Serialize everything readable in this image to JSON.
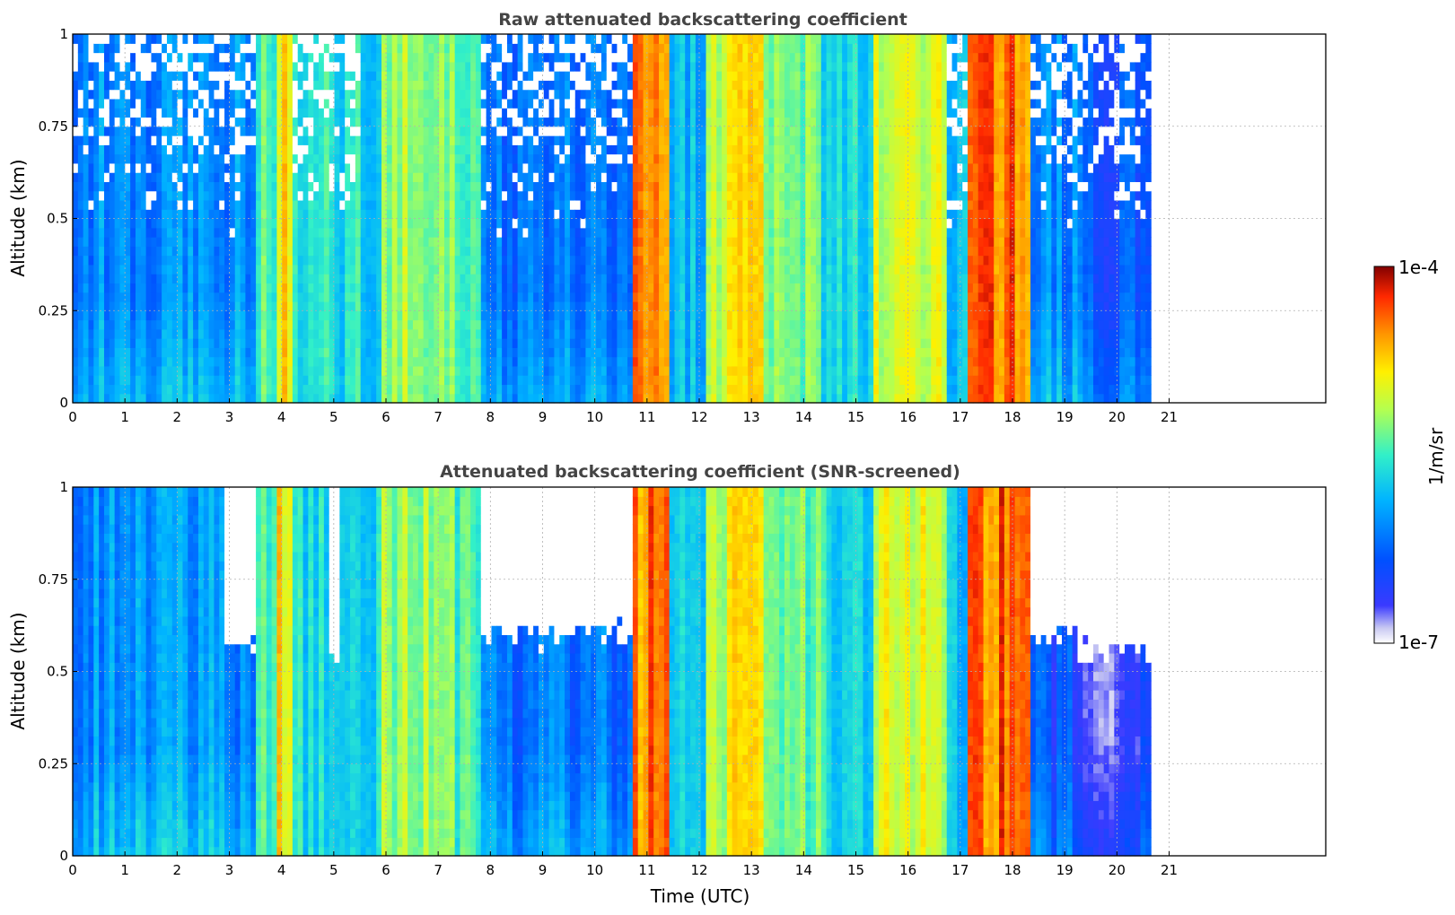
{
  "figure": {
    "colorbar": {
      "label": "1/m/sr",
      "max_label": "1e-4",
      "min_label": "1e-7",
      "scale": "log",
      "range": [
        1e-07,
        0.0001
      ],
      "colormap": "jet (white at lowest values)"
    }
  },
  "chart_data": [
    {
      "type": "heatmap",
      "title": "Raw attenuated backscattering coefficient",
      "xlabel": "",
      "ylabel": "Altitude (km)",
      "xlim": [
        0,
        24
      ],
      "ylim": [
        0,
        1
      ],
      "xticks": [
        0,
        1,
        2,
        3,
        4,
        5,
        6,
        7,
        8,
        9,
        10,
        11,
        12,
        13,
        14,
        15,
        16,
        17,
        18,
        19,
        20,
        21
      ],
      "yticks": [
        0,
        0.25,
        0.5,
        0.75,
        1
      ],
      "ytick_labels": [
        "0",
        "0.25",
        "0.5",
        "0.75",
        "1"
      ],
      "grid": true,
      "data_end_time": 20.65,
      "intensity_level_scale": "0 = 1e-7 (white), 1 = 1e-4 (dark red); colour-coded log intensity",
      "time_segments": [
        {
          "from": 0.0,
          "to": 3.5,
          "level": 0.32,
          "upper_noise": true
        },
        {
          "from": 3.5,
          "to": 3.9,
          "level": 0.55
        },
        {
          "from": 3.9,
          "to": 4.2,
          "level": 0.72
        },
        {
          "from": 4.2,
          "to": 5.5,
          "level": 0.46,
          "upper_noise": true
        },
        {
          "from": 5.5,
          "to": 5.9,
          "level": 0.42
        },
        {
          "from": 5.9,
          "to": 7.3,
          "level": 0.6
        },
        {
          "from": 7.3,
          "to": 7.8,
          "level": 0.5
        },
        {
          "from": 7.8,
          "to": 10.7,
          "level": 0.27,
          "upper_noise": true
        },
        {
          "from": 10.7,
          "to": 11.4,
          "level": 0.84
        },
        {
          "from": 11.4,
          "to": 12.1,
          "level": 0.4
        },
        {
          "from": 12.1,
          "to": 12.5,
          "level": 0.62
        },
        {
          "from": 12.5,
          "to": 13.2,
          "level": 0.78
        },
        {
          "from": 13.2,
          "to": 14.3,
          "level": 0.55
        },
        {
          "from": 14.3,
          "to": 15.3,
          "level": 0.45
        },
        {
          "from": 15.3,
          "to": 16.7,
          "level": 0.66
        },
        {
          "from": 16.7,
          "to": 17.1,
          "level": 0.4,
          "upper_noise": true
        },
        {
          "from": 17.1,
          "to": 18.3,
          "level": 0.86
        },
        {
          "from": 18.3,
          "to": 19.2,
          "level": 0.3,
          "upper_noise": true
        },
        {
          "from": 19.2,
          "to": 20.65,
          "level": 0.22,
          "upper_noise": true
        }
      ]
    },
    {
      "type": "heatmap",
      "title": "Attenuated backscattering coefficient (SNR-screened)",
      "xlabel": "Time (UTC)",
      "ylabel": "Altitude (km)",
      "xlim": [
        0,
        24
      ],
      "ylim": [
        0,
        1
      ],
      "xticks": [
        0,
        1,
        2,
        3,
        4,
        5,
        6,
        7,
        8,
        9,
        10,
        11,
        12,
        13,
        14,
        15,
        16,
        17,
        18,
        19,
        20,
        21
      ],
      "yticks": [
        0,
        0.25,
        0.5,
        0.75,
        1
      ],
      "ytick_labels": [
        "0",
        "0.25",
        "0.5",
        "0.75",
        "1"
      ],
      "grid": true,
      "data_end_time": 20.65,
      "intensity_level_scale": "0 = 1e-7 (white), 1 = 1e-4 (dark red); colour-coded log intensity",
      "time_segments": [
        {
          "from": 0.0,
          "to": 2.9,
          "level": 0.33
        },
        {
          "from": 2.9,
          "to": 3.5,
          "level": 0.3,
          "screened_above": 0.58
        },
        {
          "from": 3.5,
          "to": 3.9,
          "level": 0.55
        },
        {
          "from": 3.9,
          "to": 4.2,
          "level": 0.72
        },
        {
          "from": 4.2,
          "to": 4.9,
          "level": 0.46
        },
        {
          "from": 4.9,
          "to": 5.1,
          "level": 0.4,
          "screened_above": 0.55
        },
        {
          "from": 5.1,
          "to": 5.9,
          "level": 0.45
        },
        {
          "from": 5.9,
          "to": 7.3,
          "level": 0.6
        },
        {
          "from": 7.3,
          "to": 7.8,
          "level": 0.5
        },
        {
          "from": 7.8,
          "to": 10.7,
          "level": 0.27,
          "screened_above": 0.6
        },
        {
          "from": 10.7,
          "to": 11.4,
          "level": 0.84
        },
        {
          "from": 11.4,
          "to": 12.1,
          "level": 0.4
        },
        {
          "from": 12.1,
          "to": 12.5,
          "level": 0.62
        },
        {
          "from": 12.5,
          "to": 13.2,
          "level": 0.78
        },
        {
          "from": 13.2,
          "to": 14.3,
          "level": 0.55
        },
        {
          "from": 14.3,
          "to": 15.3,
          "level": 0.45
        },
        {
          "from": 15.3,
          "to": 16.7,
          "level": 0.66
        },
        {
          "from": 16.7,
          "to": 17.1,
          "level": 0.4
        },
        {
          "from": 17.1,
          "to": 18.3,
          "level": 0.86
        },
        {
          "from": 18.3,
          "to": 19.2,
          "level": 0.2,
          "screened_above": 0.6
        },
        {
          "from": 19.2,
          "to": 20.65,
          "level": 0.12,
          "screened_above": 0.55
        }
      ]
    }
  ]
}
